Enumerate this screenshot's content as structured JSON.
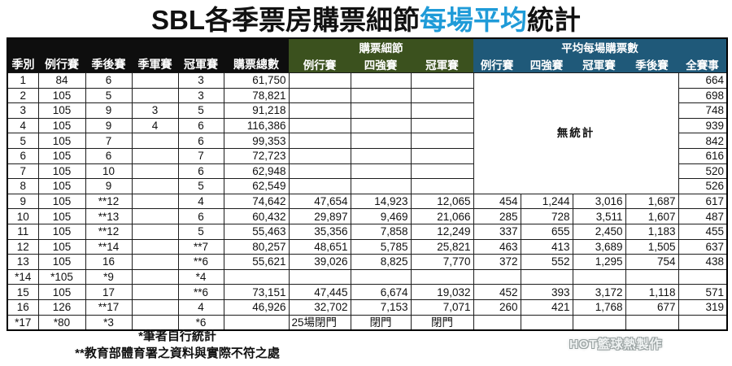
{
  "title": {
    "prefix": "SBL各季票房購票細節",
    "highlight": "每場平均",
    "suffix": "統計"
  },
  "colors": {
    "title_highlight": "#1f9bd8",
    "header_black": "#0e0e0e",
    "header_green": "#3b511e",
    "header_blue": "#1f5979",
    "value_red": "#c22626",
    "value_green": "#2fa263"
  },
  "chart_data": {
    "type": "table",
    "title": "SBL各季票房購票細節每場平均統計",
    "groups": [
      "購票細節",
      "平均每場購票數"
    ],
    "columns": [
      "季別",
      "例行賽",
      "季後賽",
      "季軍賽",
      "冠軍賽",
      "購票總數",
      "例行賽",
      "四強賽",
      "冠軍賽",
      "例行賽",
      "四強賽",
      "冠軍賽",
      "季後賽",
      "全賽事"
    ],
    "no_stats_label": "無統計",
    "token_colors": {
      "g": "#2fa263",
      "r": "#c22626"
    },
    "rows": [
      [
        "1",
        "84",
        "6",
        "",
        "g:3",
        "61,750",
        "",
        "",
        "",
        null,
        null,
        null,
        null,
        "664"
      ],
      [
        "2",
        "105",
        "5",
        "",
        "g:3",
        "78,821",
        "",
        "",
        "",
        null,
        null,
        null,
        null,
        "698"
      ],
      [
        "3",
        "105",
        "9",
        "g:3",
        "5",
        "91,218",
        "",
        "",
        "",
        null,
        null,
        null,
        null,
        "748"
      ],
      [
        "4",
        "105",
        "9",
        "r:4",
        "6",
        "r:116,386",
        "",
        "",
        "",
        null,
        null,
        null,
        null,
        "939"
      ],
      [
        "5",
        "105",
        "7",
        "",
        "6",
        "99,353",
        "",
        "",
        "",
        null,
        null,
        null,
        null,
        "842"
      ],
      [
        "6",
        "105",
        "6",
        "",
        "r:7",
        "72,723",
        "",
        "",
        "",
        null,
        null,
        null,
        null,
        "616"
      ],
      [
        "7",
        "105",
        "10",
        "",
        "6",
        "62,948",
        "",
        "",
        "",
        null,
        null,
        null,
        null,
        "520"
      ],
      [
        "8",
        "105",
        "9",
        "",
        "5",
        "62,549",
        "",
        "",
        "",
        null,
        null,
        null,
        null,
        "526"
      ],
      [
        "9",
        "105",
        "**12",
        "",
        "4",
        "74,642",
        "47,654",
        "r:14,923",
        "12,065",
        "454",
        "r:1,244",
        "3,016",
        "r:1,687",
        "617"
      ],
      [
        "10",
        "105",
        "**13",
        "",
        "6",
        "60,432",
        "g:29,897",
        "9,469",
        "21,066",
        "285",
        "728",
        "3,511",
        "1,607",
        "487"
      ],
      [
        "11",
        "105",
        "**12",
        "",
        "5",
        "55,463",
        "35,356",
        "7,858",
        "12,249",
        "337",
        "655",
        "2,450",
        "1,183",
        "455"
      ],
      [
        "12",
        "105",
        "**14",
        "",
        "r:**7",
        "80,257",
        "r:48,651",
        "g:5,785",
        "r:25,821",
        "463",
        "413",
        "r:3,689",
        "1,505",
        "r:637"
      ],
      [
        "13",
        "105",
        "16",
        "",
        "**6",
        "55,621",
        "39,026",
        "8,825",
        "7,770",
        "372",
        "552",
        "g:1,295",
        "754",
        "438"
      ],
      [
        "*14",
        "*105",
        "*9",
        "",
        "*4",
        "",
        "",
        "",
        "",
        "",
        "",
        "",
        "",
        ""
      ],
      [
        "15",
        "105",
        "17",
        "",
        "**6",
        "73,151",
        "47,445",
        "6,674",
        "19,032",
        "452",
        "g:393",
        "3,172",
        "1,118",
        "571"
      ],
      [
        "16",
        "r:126",
        "r:**17",
        "",
        "4",
        "g:46,926",
        "32,702",
        "7,153",
        "g:7,071",
        "g:260",
        "421",
        "1,768",
        "g:677",
        "g:319"
      ],
      [
        "*17",
        "g:*80",
        "g:*3",
        "",
        "*6",
        "",
        "L:25場閉門",
        "C:閉門",
        "C:閉門",
        "",
        "",
        "",
        "",
        ""
      ]
    ]
  },
  "footnotes": [
    "*筆者自行統計",
    "**教育部體育署之資料與實際不符之處"
  ],
  "watermark": "HOT籃球熱製作"
}
